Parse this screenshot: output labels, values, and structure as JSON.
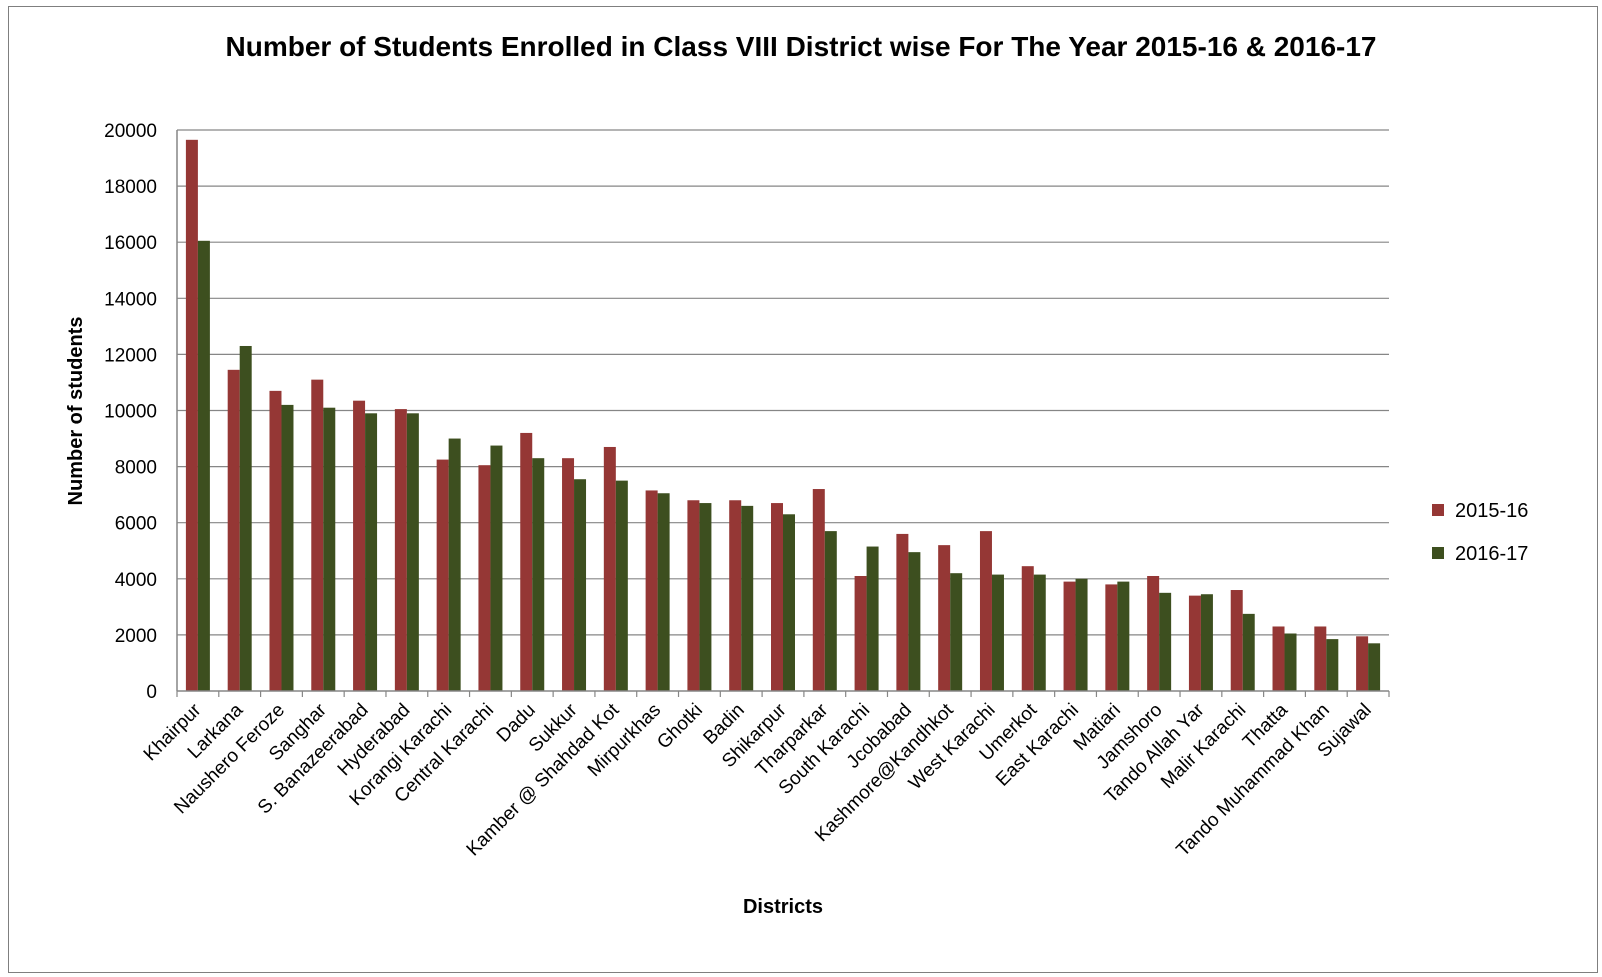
{
  "chart_data": {
    "type": "bar",
    "title": "Number of Students Enrolled in Class VIII District wise For The Year 2015-16 & 2016-17",
    "xlabel": "Districts",
    "ylabel": "Number of students",
    "ylim": [
      0,
      20000
    ],
    "yticks": [
      "0",
      "2000",
      "4000",
      "6000",
      "8000",
      "10000",
      "12000",
      "14000",
      "16000",
      "18000",
      "20000"
    ],
    "grid": true,
    "legend_position": "right",
    "categories": [
      "Khairpur",
      "Larkana",
      "Naushero Feroze",
      "Sanghar",
      "S. Banazeerabad",
      "Hyderabad",
      "Korangi Karachi",
      "Central Karachi",
      "Dadu",
      "Sukkur",
      "Kamber @ Shahdad Kot",
      "Mirpurkhas",
      "Ghotki",
      "Badin",
      "Shikarpur",
      "Tharparkar",
      "South  Karachi",
      "Jcobabad",
      "Kashmore@Kandhkot",
      "West Karachi",
      "Umerkot",
      "East Karachi",
      "Matiari",
      "Jamshoro",
      "Tando Allah Yar",
      "Malir Karachi",
      "Thatta",
      "Tando Muhammad Khan",
      "Sujawal"
    ],
    "series": [
      {
        "name": "2015-16",
        "color": "#953735",
        "values": [
          19650,
          11450,
          10700,
          11100,
          10350,
          10050,
          8250,
          8050,
          9200,
          8300,
          8700,
          7150,
          6800,
          6800,
          6700,
          7200,
          4100,
          5600,
          5200,
          5700,
          4450,
          3900,
          3800,
          4100,
          3400,
          3600,
          2300,
          2300,
          1950
        ]
      },
      {
        "name": "2016-17",
        "color": "#3d4f1f",
        "values": [
          16050,
          12300,
          10200,
          10100,
          9900,
          9900,
          9000,
          8750,
          8300,
          7550,
          7500,
          7050,
          6700,
          6600,
          6300,
          5700,
          5150,
          4950,
          4200,
          4150,
          4150,
          4000,
          3900,
          3500,
          3450,
          2750,
          2050,
          1850,
          1700
        ]
      }
    ]
  }
}
